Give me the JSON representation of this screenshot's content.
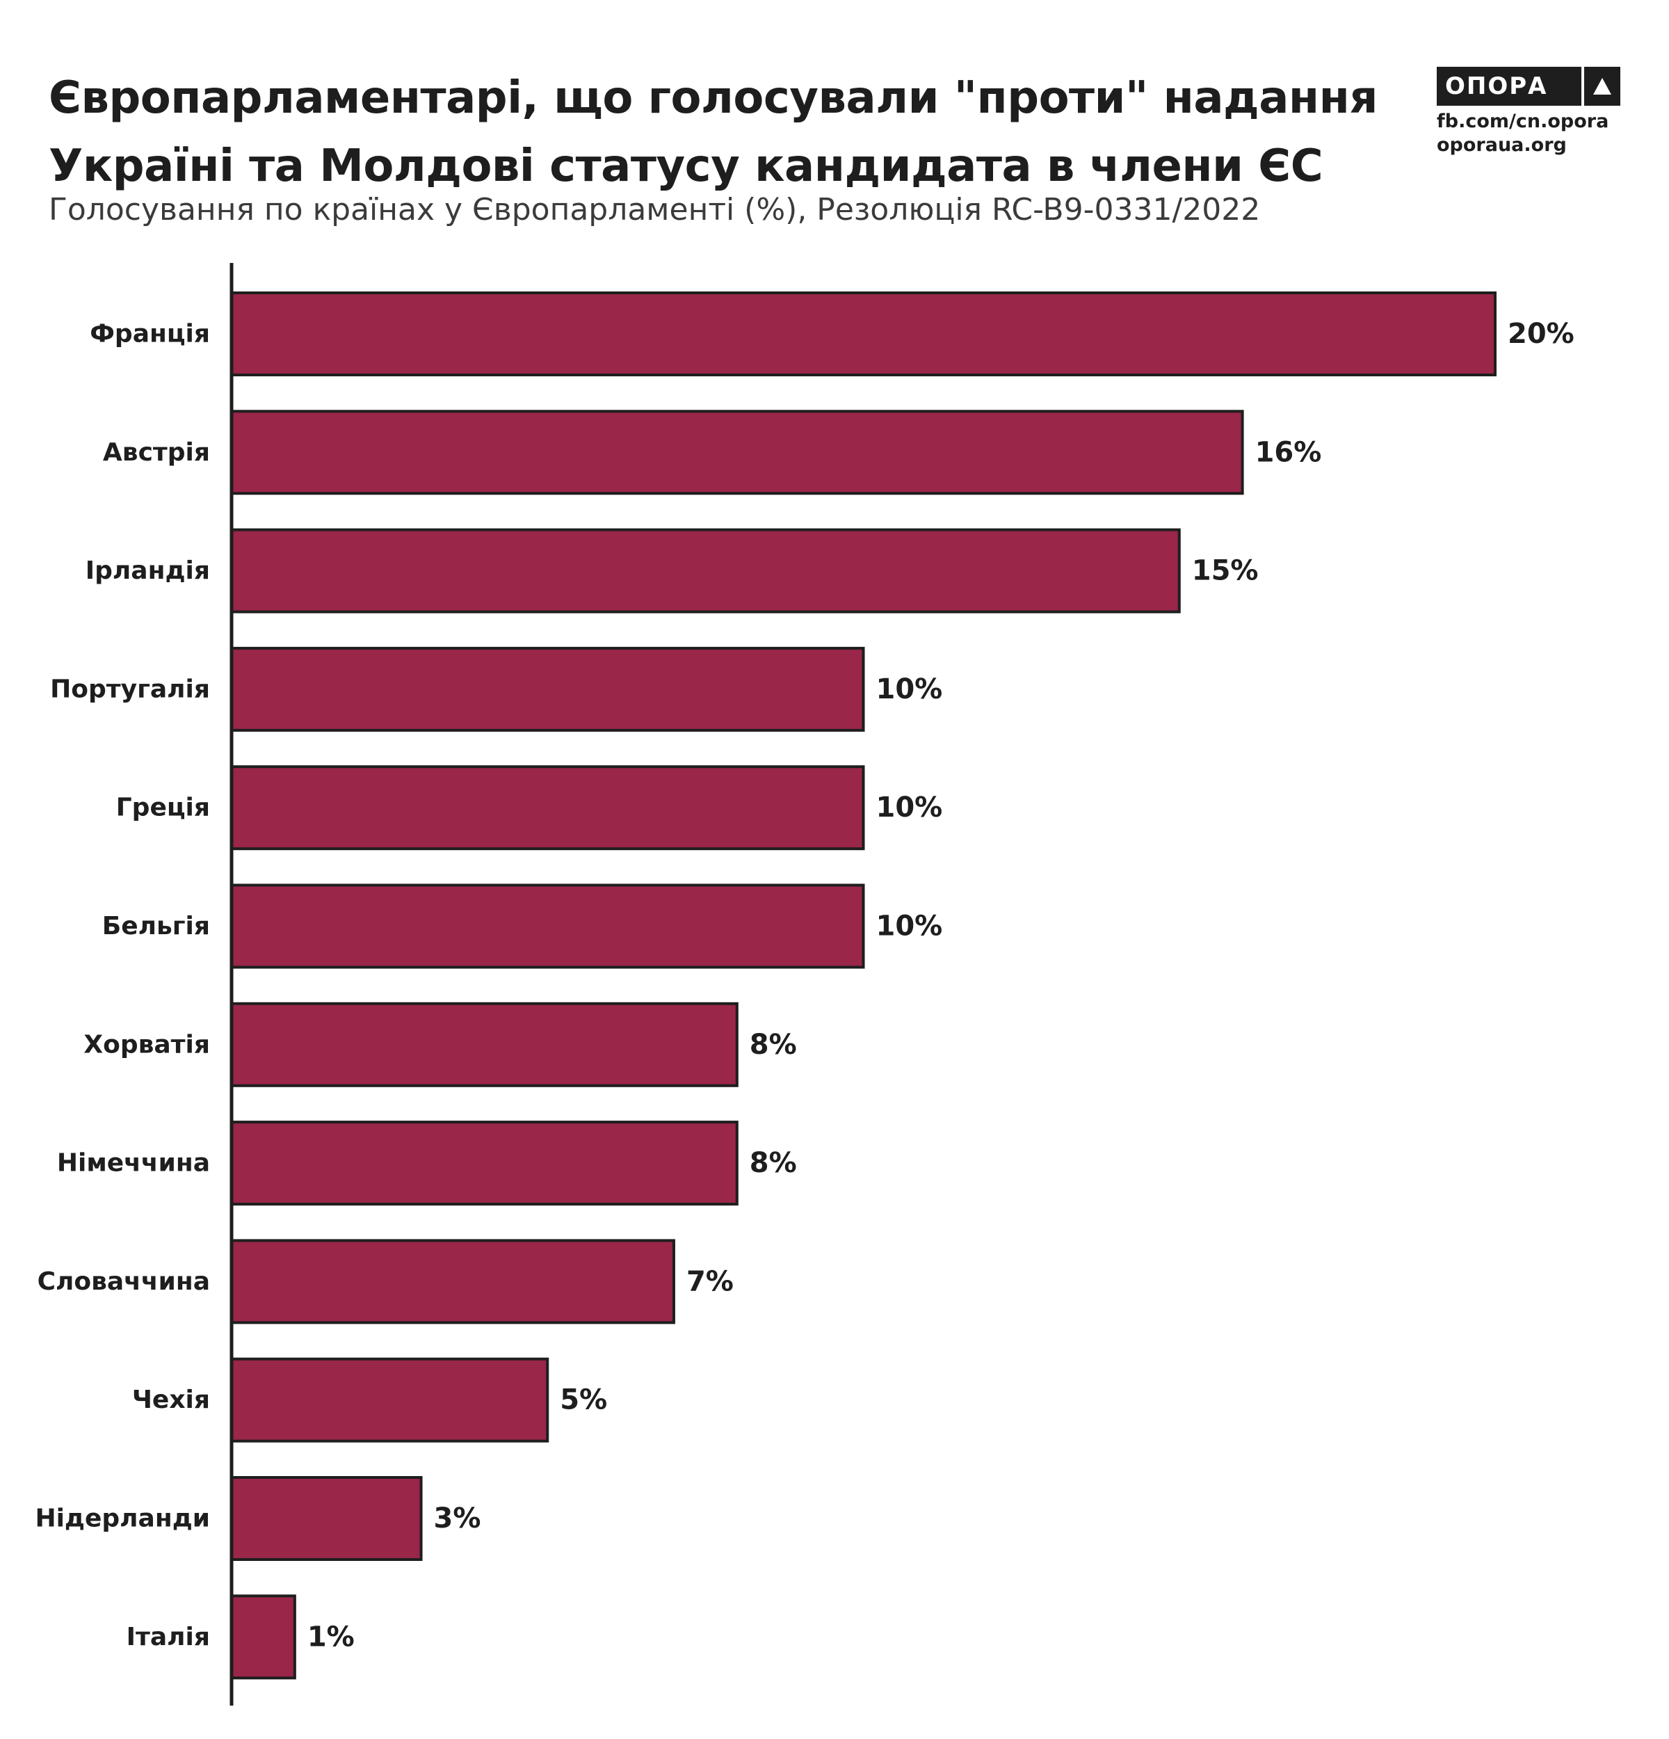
{
  "header": {
    "title": "Європарламентарі, що голосували \"проти\" надання Україні та Молдові статусу кандидата в члени ЄС",
    "subtitle": "Голосування по країнах у Європарламенті (%), Резолюція RC-B9-0331/2022"
  },
  "brand": {
    "logo_text": "ОПОРА",
    "logo_icon": "triangle-icon",
    "link_facebook": "fb.com/cn.opora",
    "link_site": "oporaua.org"
  },
  "colors": {
    "bar_fill": "#9A2649",
    "bar_stroke": "#1e1e1e",
    "text": "#1e1e1e"
  },
  "chart_data": {
    "type": "bar",
    "orientation": "horizontal",
    "title": "Європарламентарі, що голосували \"проти\" надання Україні та Молдові статусу кандидата в члени ЄС",
    "subtitle": "Голосування по країнах у Європарламенті (%), Резолюція RC-B9-0331/2022",
    "categories": [
      "Франція",
      "Австрія",
      "Ірландія",
      "Португалія",
      "Греція",
      "Бельгія",
      "Хорватія",
      "Німеччина",
      "Словаччина",
      "Чехія",
      "Нідерланди",
      "Італія"
    ],
    "values": [
      20,
      16,
      15,
      10,
      10,
      10,
      8,
      8,
      7,
      5,
      3,
      1
    ],
    "data_labels": [
      "20%",
      "16%",
      "15%",
      "10%",
      "10%",
      "10%",
      "8%",
      "8%",
      "7%",
      "5%",
      "3%",
      "1%"
    ],
    "xlim": [
      0,
      20
    ],
    "unit": "%",
    "grid": false,
    "legend": "none"
  }
}
